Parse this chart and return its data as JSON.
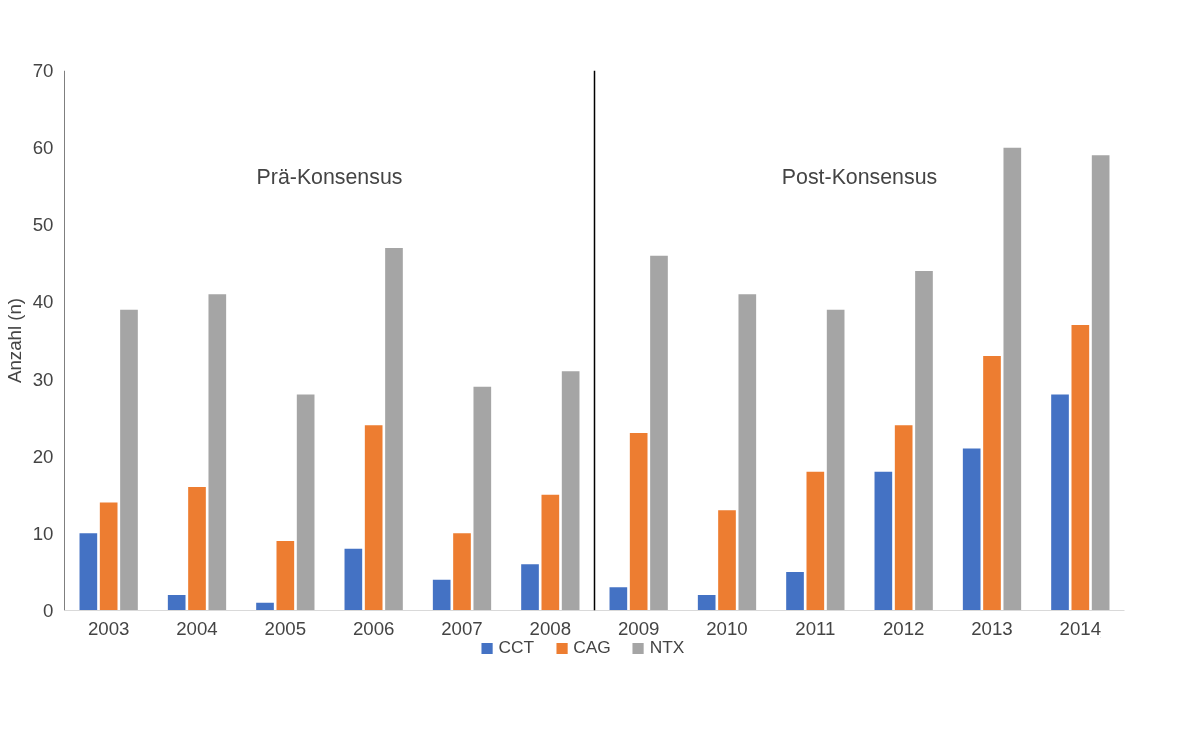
{
  "chart_data": {
    "type": "bar",
    "ylabel": "Anzahl (n)",
    "categories": [
      "2003",
      "2004",
      "2005",
      "2006",
      "2007",
      "2008",
      "2009",
      "2010",
      "2011",
      "2012",
      "2013",
      "2014"
    ],
    "series": [
      {
        "name": "CCT",
        "color": "#4472c4",
        "values": [
          10,
          2,
          1,
          8,
          4,
          6,
          3,
          2,
          5,
          18,
          21,
          28
        ]
      },
      {
        "name": "CAG",
        "color": "#ed7d31",
        "values": [
          14,
          16,
          9,
          24,
          10,
          15,
          23,
          13,
          18,
          24,
          33,
          37
        ]
      },
      {
        "name": "NTX",
        "color": "#a5a5a5",
        "values": [
          39,
          41,
          28,
          47,
          29,
          31,
          46,
          41,
          39,
          44,
          60,
          59
        ]
      }
    ],
    "ylim": [
      0,
      70
    ],
    "yticks": [
      0,
      10,
      20,
      30,
      40,
      50,
      60,
      70
    ],
    "annotations": [
      "Prä-Konsensus",
      "Post-Konsensus"
    ],
    "grid": false,
    "legend": "bottom"
  }
}
